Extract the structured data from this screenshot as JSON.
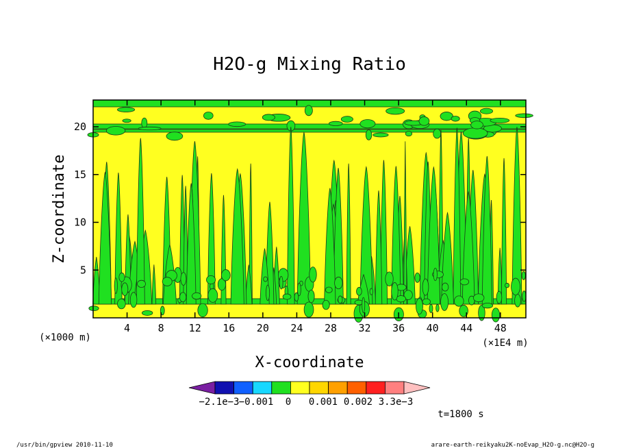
{
  "chart_data": {
    "type": "heatmap",
    "title": "H2O-g Mixing Ratio",
    "xlabel": "X-coordinate",
    "ylabel": "Z-coordinate",
    "x_unit_left": "(×1000 m)",
    "x_unit_right": "(×1E4 m)",
    "xlim": [
      0,
      51
    ],
    "ylim": [
      0,
      22.8
    ],
    "xticks": [
      4,
      8,
      12,
      16,
      20,
      24,
      28,
      32,
      36,
      40,
      44,
      48
    ],
    "yticks": [
      5,
      10,
      15,
      20
    ],
    "colorbar": {
      "colors": [
        "#7a1fa2",
        "#1010b0",
        "#1060ff",
        "#18d8ff",
        "#20e020",
        "#ffff20",
        "#ffd600",
        "#ffa000",
        "#ff6000",
        "#ff2020",
        "#ff8080",
        "#ffc0c0"
      ],
      "labels": [
        "−2.1e−3",
        "−0.001",
        "0",
        "0.001",
        "0.002",
        "3.3e−3"
      ]
    },
    "dominant_level_colors": {
      "background": "#ffff20",
      "features": "#20e020"
    },
    "time_label": "t=1800 s"
  },
  "footer": {
    "left": "/usr/bin/gpview   2010-11-10",
    "right": "arare-earth-reikyaku2K-noEvap_H2O-g.nc@H2O-g"
  }
}
